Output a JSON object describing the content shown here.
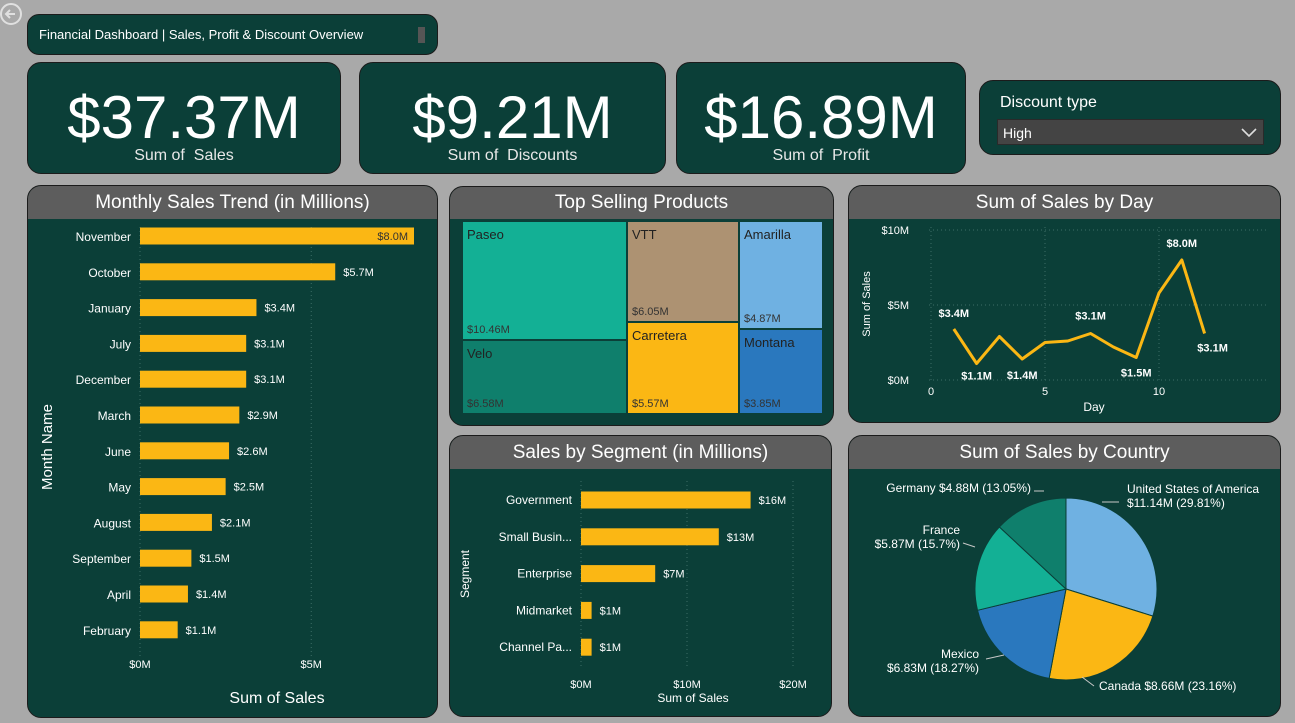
{
  "header": {
    "title": "Financial Dashboard | Sales, Profit & Discount Overview"
  },
  "kpis": [
    {
      "value": "$37.37M",
      "label": "Sum of  Sales"
    },
    {
      "value": "$9.21M",
      "label": "Sum of  Discounts"
    },
    {
      "value": "$16.89M",
      "label": "Sum of  Profit"
    }
  ],
  "filter": {
    "label": "Discount type",
    "value": "High"
  },
  "monthly": {
    "title": "Monthly Sales Trend (in Millions)",
    "ylabel": "Month Name",
    "xlabel": "Sum of Sales",
    "ticks": [
      "$0M",
      "$5M"
    ]
  },
  "products": {
    "title": "Top Selling Products"
  },
  "day": {
    "title": "Sum of Sales by Day",
    "ylabel": "Sum of Sales",
    "xlabel": "Day"
  },
  "segment": {
    "title": "Sales by Segment (in Millions)",
    "ylabel": "Segment",
    "xlabel": "Sum of Sales"
  },
  "country": {
    "title": "Sum of Sales by Country"
  },
  "chart_data": [
    {
      "type": "bar",
      "title": "Monthly Sales Trend (in Millions)",
      "xlabel": "Sum of Sales",
      "ylabel": "Month Name",
      "categories": [
        "November",
        "October",
        "January",
        "July",
        "December",
        "March",
        "June",
        "May",
        "August",
        "September",
        "April",
        "February"
      ],
      "values": [
        8.0,
        5.7,
        3.4,
        3.1,
        3.1,
        2.9,
        2.6,
        2.5,
        2.1,
        1.5,
        1.4,
        1.1
      ],
      "labels": [
        "$8.0M",
        "$5.7M",
        "$3.4M",
        "$3.1M",
        "$3.1M",
        "$2.9M",
        "$2.6M",
        "$2.5M",
        "$2.1M",
        "$1.5M",
        "$1.4M",
        "$1.1M"
      ],
      "xticks": [
        "$0M",
        "$5M"
      ],
      "xlim": [
        0,
        8.0
      ],
      "color": "#fbb714"
    },
    {
      "type": "treemap",
      "title": "Top Selling Products",
      "items": [
        {
          "name": "Paseo",
          "value": "$10.46M",
          "color": "#13b095"
        },
        {
          "name": "Velo",
          "value": "$6.58M",
          "color": "#0f7f6c"
        },
        {
          "name": "VTT",
          "value": "$6.05M",
          "color": "#ad9272"
        },
        {
          "name": "Carretera",
          "value": "$5.57M",
          "color": "#fbb714"
        },
        {
          "name": "Amarilla",
          "value": "$4.87M",
          "color": "#6fb1e2"
        },
        {
          "name": "Montana",
          "value": "$3.85M",
          "color": "#2a78be"
        }
      ]
    },
    {
      "type": "line",
      "title": "Sum of Sales by Day",
      "xlabel": "Day",
      "ylabel": "Sum of Sales",
      "x": [
        1,
        2,
        3,
        4,
        5,
        6,
        7,
        8,
        9,
        10,
        11,
        12
      ],
      "values": [
        3.4,
        1.1,
        2.9,
        1.4,
        2.5,
        2.6,
        3.1,
        2.2,
        1.5,
        5.8,
        8.0,
        3.1
      ],
      "point_labels": {
        "0": "$3.4M",
        "1": "$1.1M",
        "3": "$1.4M",
        "6": "$3.1M",
        "8": "$1.5M",
        "10": "$8.0M",
        "11": "$3.1M"
      },
      "yticks": [
        "$0M",
        "$5M",
        "$10M"
      ],
      "xticks": [
        "0",
        "5",
        "10"
      ],
      "ylim": [
        0,
        10
      ],
      "xlim": [
        0,
        12
      ],
      "color": "#fbb714"
    },
    {
      "type": "bar",
      "title": "Sales by Segment (in Millions)",
      "xlabel": "Sum of Sales",
      "ylabel": "Segment",
      "categories": [
        "Government",
        "Small Busin...",
        "Enterprise",
        "Midmarket",
        "Channel Pa..."
      ],
      "values": [
        16,
        13,
        7,
        1,
        1
      ],
      "labels": [
        "$16M",
        "$13M",
        "$7M",
        "$1M",
        "$1M"
      ],
      "xticks": [
        "$0M",
        "$10M",
        "$20M"
      ],
      "xlim": [
        0,
        20
      ],
      "color": "#fbb714"
    },
    {
      "type": "pie",
      "title": "Sum of Sales by Country",
      "slices": [
        {
          "name": "United States of America",
          "value": "$11.14M (29.81%)",
          "pct": 29.81,
          "color": "#6fb1e2"
        },
        {
          "name": "Canada",
          "value": "$8.66M (23.16%)",
          "pct": 23.16,
          "color": "#fbb714"
        },
        {
          "name": "Mexico",
          "value": "$6.83M (18.27%)",
          "pct": 18.27,
          "color": "#2a78be"
        },
        {
          "name": "France",
          "value": "$5.87M (15.7%)",
          "pct": 15.7,
          "color": "#13b095"
        },
        {
          "name": "Germany",
          "value": "$4.88M (13.05%)",
          "pct": 13.05,
          "color": "#0f7f6c"
        }
      ]
    }
  ]
}
